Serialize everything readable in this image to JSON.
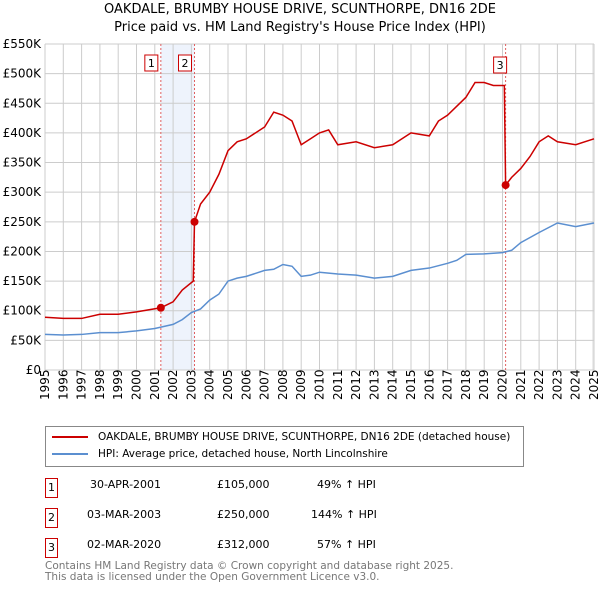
{
  "chart_data": {
    "type": "line",
    "title": "OAKDALE, BRUMBY HOUSE DRIVE, SCUNTHORPE, DN16 2DE",
    "subtitle": "Price paid vs. HM Land Registry's House Price Index (HPI)",
    "xlim": [
      1995,
      2025
    ],
    "ylim": [
      0,
      550000
    ],
    "x_ticks": [
      "1995",
      "1996",
      "1997",
      "1998",
      "1999",
      "2000",
      "2001",
      "2002",
      "2003",
      "2004",
      "2005",
      "2006",
      "2007",
      "2008",
      "2009",
      "2010",
      "2011",
      "2012",
      "2013",
      "2014",
      "2015",
      "2016",
      "2017",
      "2018",
      "2019",
      "2020",
      "2021",
      "2022",
      "2023",
      "2024",
      "2025"
    ],
    "y_ticks": [
      {
        "v": 0,
        "label": "£0"
      },
      {
        "v": 50000,
        "label": "£50K"
      },
      {
        "v": 100000,
        "label": "£100K"
      },
      {
        "v": 150000,
        "label": "£150K"
      },
      {
        "v": 200000,
        "label": "£200K"
      },
      {
        "v": 250000,
        "label": "£250K"
      },
      {
        "v": 300000,
        "label": "£300K"
      },
      {
        "v": 350000,
        "label": "£350K"
      },
      {
        "v": 400000,
        "label": "£400K"
      },
      {
        "v": 450000,
        "label": "£450K"
      },
      {
        "v": 500000,
        "label": "£500K"
      },
      {
        "v": 550000,
        "label": "£550K"
      }
    ],
    "grid": true,
    "series": [
      {
        "name": "OAKDALE, BRUMBY HOUSE DRIVE, SCUNTHORPE, DN16 2DE (detached house)",
        "color": "#cc0000",
        "x": [
          1995,
          1996,
          1997,
          1998,
          1999,
          2000,
          2001.33,
          2002,
          2002.5,
          2003.1,
          2003.17,
          2003.5,
          2004,
          2004.5,
          2005,
          2005.5,
          2006,
          2007,
          2007.5,
          2008,
          2008.5,
          2009,
          2009.5,
          2010,
          2010.5,
          2011,
          2012,
          2013,
          2014,
          2015,
          2016,
          2016.5,
          2017,
          2018,
          2018.5,
          2019,
          2019.5,
          2020.1,
          2020.17,
          2020.5,
          2021,
          2021.5,
          2022,
          2022.5,
          2023,
          2024,
          2025
        ],
        "y": [
          89000,
          87000,
          87000,
          94000,
          94000,
          98000,
          105000,
          115000,
          135000,
          150000,
          250000,
          280000,
          300000,
          330000,
          370000,
          385000,
          390000,
          410000,
          435000,
          430000,
          420000,
          380000,
          390000,
          400000,
          405000,
          380000,
          385000,
          375000,
          380000,
          400000,
          395000,
          420000,
          430000,
          460000,
          485000,
          485000,
          480000,
          480000,
          312000,
          325000,
          340000,
          360000,
          385000,
          395000,
          385000,
          380000,
          390000
        ]
      },
      {
        "name": "HPI: Average price, detached house, North Lincolnshire",
        "color": "#5b8fd0",
        "x": [
          1995,
          1996,
          1997,
          1998,
          1999,
          2000,
          2001,
          2002,
          2002.5,
          2003,
          2003.5,
          2004,
          2004.5,
          2005,
          2005.5,
          2006,
          2007,
          2007.5,
          2008,
          2008.5,
          2009,
          2009.5,
          2010,
          2011,
          2012,
          2013,
          2014,
          2015,
          2016,
          2017,
          2017.5,
          2018,
          2019,
          2020,
          2020.5,
          2021,
          2022,
          2022.5,
          2023,
          2024,
          2025
        ],
        "y": [
          60000,
          59000,
          60000,
          63000,
          63000,
          66000,
          70000,
          77000,
          85000,
          97000,
          103000,
          118000,
          128000,
          150000,
          155000,
          158000,
          168000,
          170000,
          178000,
          175000,
          158000,
          160000,
          165000,
          162000,
          160000,
          155000,
          158000,
          168000,
          172000,
          180000,
          185000,
          195000,
          196000,
          198000,
          202000,
          215000,
          232000,
          240000,
          248000,
          242000,
          248000
        ]
      }
    ],
    "sales": [
      {
        "n": "1",
        "x": 2001.33,
        "y": 105000,
        "date": "30-APR-2001",
        "price": "£105,000",
        "hpi": "49% ↑ HPI"
      },
      {
        "n": "2",
        "x": 2003.17,
        "y": 250000,
        "date": "03-MAR-2003",
        "price": "£250,000",
        "hpi": "144% ↑ HPI"
      },
      {
        "n": "3",
        "x": 2020.17,
        "y": 312000,
        "date": "02-MAR-2020",
        "price": "£312,000",
        "hpi": "57% ↑ HPI"
      }
    ]
  },
  "footer": [
    "Contains HM Land Registry data © Crown copyright and database right 2025.",
    "This data is licensed under the Open Government Licence v3.0."
  ]
}
